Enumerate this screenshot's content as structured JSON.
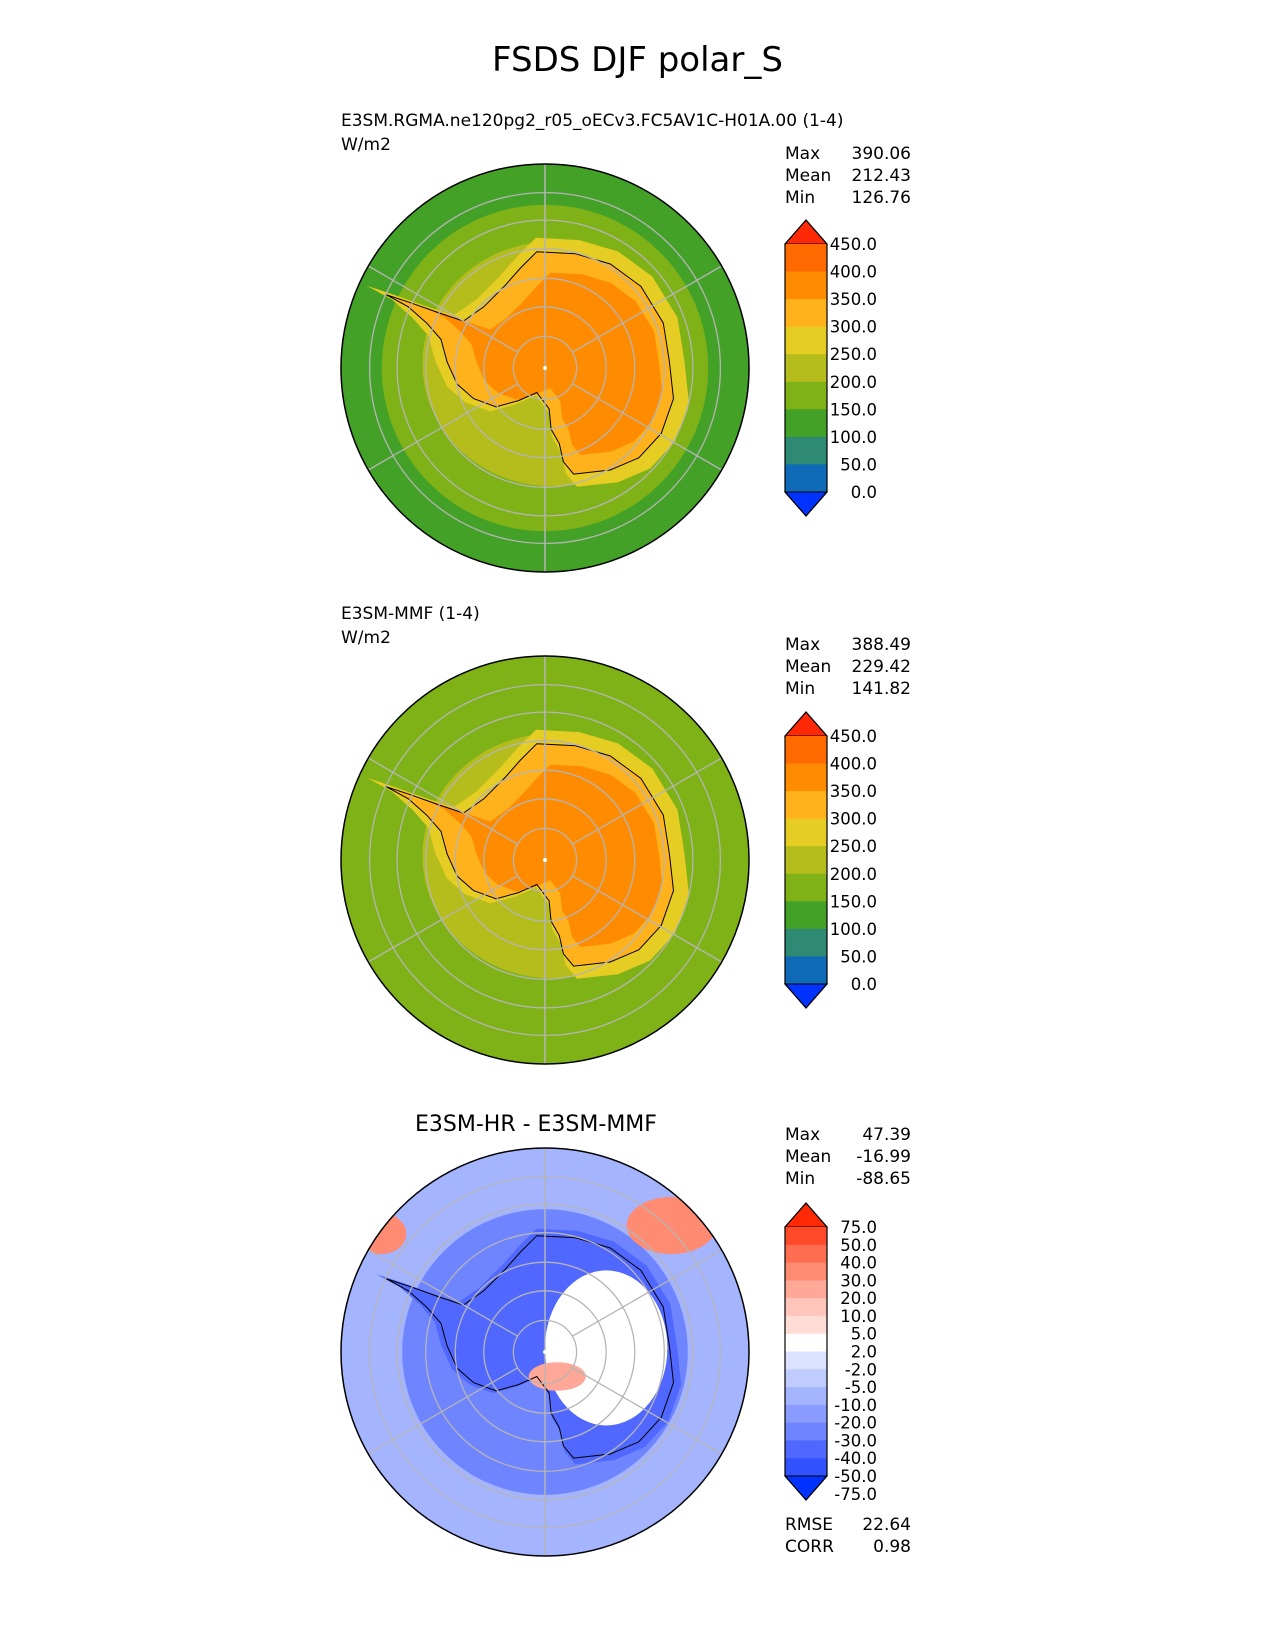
{
  "figure": {
    "title": "FSDS DJF polar_S"
  },
  "chart_data": [
    {
      "type": "heatmap",
      "projection": "south polar stereographic",
      "title_left": "E3SM.RGMA.ne120pg2_r05_oECv3.FC5AV1C-H01A.00 (1-4)",
      "units": "W/m2",
      "stats": [
        {
          "label": "Max",
          "value": "390.06"
        },
        {
          "label": "Mean",
          "value": "212.43"
        },
        {
          "label": "Min",
          "value": "126.76"
        }
      ],
      "colorbar": {
        "ticks": [
          "450.0",
          "400.0",
          "350.0",
          "300.0",
          "250.0",
          "200.0",
          "150.0",
          "100.0",
          "50.0",
          "0.0"
        ],
        "colors": [
          "#ff2a05",
          "#ff6a00",
          "#ff8c00",
          "#ffb21b",
          "#e6cd24",
          "#b5bd1c",
          "#7fb217",
          "#43a128",
          "#2e8a72",
          "#0f6ab7",
          "#0033ff"
        ],
        "extend": "both"
      },
      "region_values": {
        "outer_ocean": 125,
        "mid_ocean": 160,
        "coast_band": 210,
        "ice_margin": 275,
        "plateau": 370,
        "interior_edge": 325
      }
    },
    {
      "type": "heatmap",
      "projection": "south polar stereographic",
      "title_left": "E3SM-MMF (1-4)",
      "units": "W/m2",
      "stats": [
        {
          "label": "Max",
          "value": "388.49"
        },
        {
          "label": "Mean",
          "value": "229.42"
        },
        {
          "label": "Min",
          "value": "141.82"
        }
      ],
      "colorbar": {
        "ticks": [
          "450.0",
          "400.0",
          "350.0",
          "300.0",
          "250.0",
          "200.0",
          "150.0",
          "100.0",
          "50.0",
          "0.0"
        ],
        "colors": [
          "#ff2a05",
          "#ff6a00",
          "#ff8c00",
          "#ffb21b",
          "#e6cd24",
          "#b5bd1c",
          "#7fb217",
          "#43a128",
          "#2e8a72",
          "#0f6ab7",
          "#0033ff"
        ],
        "extend": "both"
      },
      "region_values": {
        "outer_ocean": 160,
        "mid_ocean": 175,
        "coast_band": 220,
        "ice_margin": 280,
        "plateau": 375,
        "interior_edge": 330
      }
    },
    {
      "type": "heatmap",
      "projection": "south polar stereographic",
      "title_center": "E3SM-HR - E3SM-MMF",
      "stats": [
        {
          "label": "Max",
          "value": "47.39"
        },
        {
          "label": "Mean",
          "value": "-16.99"
        },
        {
          "label": "Min",
          "value": "-88.65"
        }
      ],
      "colorbar": {
        "ticks": [
          "75.0",
          "50.0",
          "40.0",
          "30.0",
          "20.0",
          "10.0",
          "5.0",
          "2.0",
          "-2.0",
          "-5.0",
          "-10.0",
          "-20.0",
          "-30.0",
          "-40.0",
          "-50.0",
          "-75.0"
        ],
        "colors": [
          "#ff2a05",
          "#ff4a2a",
          "#ff6e50",
          "#ff8b73",
          "#ffa898",
          "#ffc5bb",
          "#ffdcd6",
          "#ffffff",
          "#dbe2ff",
          "#c0ccff",
          "#a4b4ff",
          "#8a9cff",
          "#6f84ff",
          "#5068ff",
          "#3251ff",
          "#0033ff"
        ],
        "extend": "both"
      },
      "region_values": {
        "outer_ocean": -10,
        "mid_ocean": -25,
        "coast_band": -40,
        "east_antarctica": 3,
        "peninsula": 20,
        "indian_sector": 30
      },
      "metrics": [
        {
          "label": "RMSE",
          "value": "22.64"
        },
        {
          "label": "CORR",
          "value": "0.98"
        }
      ]
    }
  ]
}
